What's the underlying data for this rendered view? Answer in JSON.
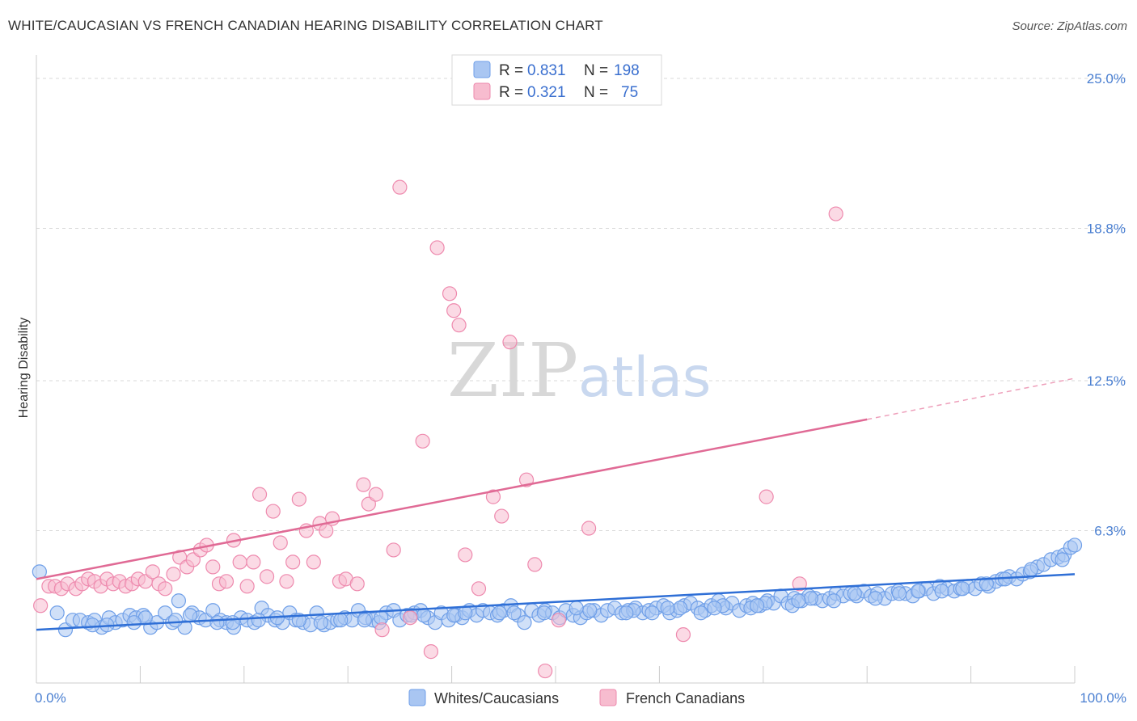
{
  "title": "WHITE/CAUCASIAN VS FRENCH CANADIAN HEARING DISABILITY CORRELATION CHART",
  "source": "Source: ZipAtlas.com",
  "watermark": {
    "zip": "ZIP",
    "atlas": "atlas"
  },
  "chart_data": {
    "type": "scatter",
    "ylabel": "Hearing Disability",
    "xlim": [
      0,
      100
    ],
    "ylim": [
      0,
      25
    ],
    "x_ticks": [
      "0.0%",
      "100.0%"
    ],
    "y_ticks": [
      {
        "value": 6.3,
        "label": "6.3%"
      },
      {
        "value": 12.5,
        "label": "12.5%"
      },
      {
        "value": 18.8,
        "label": "18.8%"
      },
      {
        "value": 25.0,
        "label": "25.0%"
      }
    ],
    "legend": {
      "placement": "top-center",
      "entries": [
        {
          "r_label": "R =",
          "r": "0.831",
          "n_label": "N =",
          "n": "198",
          "color": "#7aaaf0"
        },
        {
          "r_label": "R =",
          "r": "0.321",
          "n_label": "N =",
          "n": "75",
          "color": "#f49ab8"
        }
      ]
    },
    "series": [
      {
        "name": "Whites/Caucasians",
        "color": "#6f9fe8",
        "fill": "#a9c6f2",
        "trend": {
          "x": [
            0,
            100
          ],
          "y": [
            2.2,
            4.5
          ]
        },
        "points": [
          [
            0.3,
            4.6
          ],
          [
            2,
            2.9
          ],
          [
            2.8,
            2.2
          ],
          [
            3.5,
            2.6
          ],
          [
            4.2,
            2.6
          ],
          [
            5,
            2.5
          ],
          [
            5.6,
            2.6
          ],
          [
            6.3,
            2.3
          ],
          [
            7,
            2.7
          ],
          [
            7.6,
            2.5
          ],
          [
            8.3,
            2.6
          ],
          [
            9,
            2.8
          ],
          [
            9.6,
            2.7
          ],
          [
            10.3,
            2.8
          ],
          [
            11,
            2.3
          ],
          [
            11.6,
            2.5
          ],
          [
            12.4,
            2.9
          ],
          [
            13.1,
            2.5
          ],
          [
            13.7,
            3.4
          ],
          [
            14.3,
            2.3
          ],
          [
            15,
            2.9
          ],
          [
            15.7,
            2.7
          ],
          [
            16.3,
            2.6
          ],
          [
            17,
            3.0
          ],
          [
            17.7,
            2.6
          ],
          [
            18.3,
            2.5
          ],
          [
            19,
            2.3
          ],
          [
            19.7,
            2.7
          ],
          [
            20.3,
            2.6
          ],
          [
            21,
            2.5
          ],
          [
            21.7,
            3.1
          ],
          [
            22.3,
            2.8
          ],
          [
            23,
            2.6
          ],
          [
            23.7,
            2.5
          ],
          [
            24.4,
            2.9
          ],
          [
            25,
            2.6
          ],
          [
            25.7,
            2.5
          ],
          [
            26.4,
            2.4
          ],
          [
            27,
            2.9
          ],
          [
            27.7,
            2.4
          ],
          [
            28.3,
            2.5
          ],
          [
            29,
            2.6
          ],
          [
            29.7,
            2.7
          ],
          [
            30.4,
            2.6
          ],
          [
            31,
            3.0
          ],
          [
            31.7,
            2.7
          ],
          [
            32.4,
            2.6
          ],
          [
            33,
            2.5
          ],
          [
            33.7,
            2.9
          ],
          [
            34.4,
            3.0
          ],
          [
            35,
            2.6
          ],
          [
            35.7,
            2.8
          ],
          [
            36.4,
            2.9
          ],
          [
            37,
            3.0
          ],
          [
            37.7,
            2.7
          ],
          [
            38.4,
            2.5
          ],
          [
            39,
            2.9
          ],
          [
            39.7,
            2.6
          ],
          [
            40.4,
            2.8
          ],
          [
            41,
            2.7
          ],
          [
            41.7,
            3.0
          ],
          [
            42.4,
            2.8
          ],
          [
            43,
            3.0
          ],
          [
            43.7,
            2.9
          ],
          [
            44.4,
            2.8
          ],
          [
            45,
            3.0
          ],
          [
            45.7,
            3.2
          ],
          [
            46.4,
            2.8
          ],
          [
            47,
            2.5
          ],
          [
            47.7,
            3.0
          ],
          [
            48.4,
            2.8
          ],
          [
            49,
            3.0
          ],
          [
            49.7,
            2.9
          ],
          [
            50.4,
            2.7
          ],
          [
            51,
            3.0
          ],
          [
            51.7,
            2.8
          ],
          [
            52.4,
            2.7
          ],
          [
            53,
            2.9
          ],
          [
            53.7,
            3.0
          ],
          [
            54.4,
            2.8
          ],
          [
            55,
            3.0
          ],
          [
            55.7,
            3.1
          ],
          [
            56.4,
            2.9
          ],
          [
            57,
            3.0
          ],
          [
            57.7,
            3.1
          ],
          [
            58.4,
            2.9
          ],
          [
            59,
            3.0
          ],
          [
            59.7,
            3.1
          ],
          [
            60.4,
            3.2
          ],
          [
            61,
            2.9
          ],
          [
            61.7,
            3.0
          ],
          [
            62.4,
            3.2
          ],
          [
            63,
            3.3
          ],
          [
            63.7,
            3.1
          ],
          [
            64.4,
            3.0
          ],
          [
            65,
            3.2
          ],
          [
            65.7,
            3.4
          ],
          [
            66.4,
            3.1
          ],
          [
            67,
            3.3
          ],
          [
            67.7,
            3.0
          ],
          [
            68.4,
            3.2
          ],
          [
            69,
            3.3
          ],
          [
            69.7,
            3.2
          ],
          [
            70.4,
            3.4
          ],
          [
            71,
            3.3
          ],
          [
            71.7,
            3.6
          ],
          [
            72.4,
            3.3
          ],
          [
            73,
            3.5
          ],
          [
            73.7,
            3.4
          ],
          [
            74.4,
            3.6
          ],
          [
            75,
            3.5
          ],
          [
            75.7,
            3.4
          ],
          [
            76.4,
            3.5
          ],
          [
            77,
            3.7
          ],
          [
            77.7,
            3.6
          ],
          [
            78.4,
            3.7
          ],
          [
            79,
            3.6
          ],
          [
            79.7,
            3.8
          ],
          [
            80.4,
            3.6
          ],
          [
            81,
            3.7
          ],
          [
            81.7,
            3.5
          ],
          [
            82.4,
            3.7
          ],
          [
            83,
            3.8
          ],
          [
            83.7,
            3.7
          ],
          [
            84.4,
            3.6
          ],
          [
            85,
            3.8
          ],
          [
            85.7,
            3.9
          ],
          [
            86.4,
            3.7
          ],
          [
            87,
            4.0
          ],
          [
            87.7,
            3.9
          ],
          [
            88.4,
            3.8
          ],
          [
            89,
            3.9
          ],
          [
            89.7,
            4.0
          ],
          [
            90.4,
            3.9
          ],
          [
            91,
            4.1
          ],
          [
            91.7,
            4.0
          ],
          [
            92.4,
            4.2
          ],
          [
            93,
            4.3
          ],
          [
            93.7,
            4.4
          ],
          [
            94.4,
            4.3
          ],
          [
            95,
            4.5
          ],
          [
            95.7,
            4.6
          ],
          [
            96.4,
            4.8
          ],
          [
            97,
            4.9
          ],
          [
            97.7,
            5.1
          ],
          [
            98.4,
            5.2
          ],
          [
            99,
            5.3
          ],
          [
            99.6,
            5.6
          ],
          [
            100,
            5.7
          ],
          [
            98.8,
            5.1
          ],
          [
            6.8,
            2.4
          ],
          [
            10.5,
            2.7
          ],
          [
            14.8,
            2.8
          ],
          [
            18.9,
            2.5
          ],
          [
            23.2,
            2.7
          ],
          [
            27.4,
            2.5
          ],
          [
            31.6,
            2.6
          ],
          [
            36.1,
            2.8
          ],
          [
            40.2,
            2.8
          ],
          [
            44.6,
            2.9
          ],
          [
            48.9,
            2.9
          ],
          [
            53.3,
            3.0
          ],
          [
            57.5,
            3.0
          ],
          [
            62.0,
            3.1
          ],
          [
            66.1,
            3.2
          ],
          [
            70.2,
            3.3
          ],
          [
            74.6,
            3.5
          ],
          [
            78.8,
            3.7
          ],
          [
            83.1,
            3.7
          ],
          [
            87.2,
            3.8
          ],
          [
            91.5,
            4.1
          ],
          [
            95.8,
            4.7
          ],
          [
            52.0,
            3.1
          ],
          [
            59.3,
            2.9
          ],
          [
            64.0,
            2.9
          ],
          [
            68.8,
            3.1
          ],
          [
            72.8,
            3.2
          ],
          [
            76.8,
            3.4
          ],
          [
            80.8,
            3.5
          ],
          [
            84.9,
            3.8
          ],
          [
            89.2,
            3.9
          ],
          [
            93.3,
            4.3
          ],
          [
            46.0,
            2.9
          ],
          [
            41.3,
            2.9
          ],
          [
            37.3,
            2.8
          ],
          [
            33.2,
            2.7
          ],
          [
            29.3,
            2.6
          ],
          [
            25.3,
            2.6
          ],
          [
            21.4,
            2.6
          ],
          [
            17.4,
            2.5
          ],
          [
            13.4,
            2.6
          ],
          [
            9.4,
            2.5
          ],
          [
            5.4,
            2.4
          ],
          [
            56.8,
            2.9
          ],
          [
            60.8,
            3.1
          ],
          [
            65.3,
            3.1
          ],
          [
            69.4,
            3.2
          ],
          [
            73.4,
            3.4
          ]
        ]
      },
      {
        "name": "French Canadians",
        "color": "#ee8aae",
        "fill": "#f7bccf",
        "trend": {
          "x": [
            0,
            80
          ],
          "y": [
            4.3,
            10.9
          ]
        },
        "trend_dashed": {
          "x": [
            80,
            100
          ],
          "y": [
            10.9,
            12.6
          ]
        },
        "points": [
          [
            0.4,
            3.2
          ],
          [
            1.2,
            4.0
          ],
          [
            1.8,
            4.0
          ],
          [
            2.4,
            3.9
          ],
          [
            3,
            4.1
          ],
          [
            3.8,
            3.9
          ],
          [
            4.4,
            4.1
          ],
          [
            5,
            4.3
          ],
          [
            5.6,
            4.2
          ],
          [
            6.2,
            4.0
          ],
          [
            6.8,
            4.3
          ],
          [
            7.4,
            4.1
          ],
          [
            8,
            4.2
          ],
          [
            8.6,
            4.0
          ],
          [
            9.2,
            4.1
          ],
          [
            9.8,
            4.3
          ],
          [
            10.5,
            4.2
          ],
          [
            11.2,
            4.6
          ],
          [
            11.8,
            4.1
          ],
          [
            12.4,
            3.9
          ],
          [
            13.2,
            4.5
          ],
          [
            13.8,
            5.2
          ],
          [
            14.5,
            4.8
          ],
          [
            15.1,
            5.1
          ],
          [
            15.8,
            5.5
          ],
          [
            16.4,
            5.7
          ],
          [
            17,
            4.8
          ],
          [
            17.6,
            4.1
          ],
          [
            18.3,
            4.2
          ],
          [
            19,
            5.9
          ],
          [
            19.6,
            5.0
          ],
          [
            20.3,
            4.0
          ],
          [
            20.9,
            5.0
          ],
          [
            21.5,
            7.8
          ],
          [
            22.2,
            4.4
          ],
          [
            22.8,
            7.1
          ],
          [
            23.5,
            5.8
          ],
          [
            24.1,
            4.2
          ],
          [
            24.7,
            5.0
          ],
          [
            25.3,
            7.6
          ],
          [
            26,
            6.3
          ],
          [
            26.7,
            5.0
          ],
          [
            27.3,
            6.6
          ],
          [
            27.9,
            6.3
          ],
          [
            28.5,
            6.8
          ],
          [
            29.2,
            4.2
          ],
          [
            29.8,
            4.3
          ],
          [
            30.9,
            4.1
          ],
          [
            31.5,
            8.2
          ],
          [
            32,
            7.4
          ],
          [
            32.7,
            7.8
          ],
          [
            33.3,
            2.2
          ],
          [
            34.4,
            5.5
          ],
          [
            35,
            20.5
          ],
          [
            36,
            2.7
          ],
          [
            37.2,
            10.0
          ],
          [
            38,
            1.3
          ],
          [
            38.6,
            18.0
          ],
          [
            39.8,
            16.1
          ],
          [
            40.2,
            15.4
          ],
          [
            40.7,
            14.8
          ],
          [
            41.3,
            5.3
          ],
          [
            42.6,
            3.9
          ],
          [
            44,
            7.7
          ],
          [
            44.8,
            6.9
          ],
          [
            45.6,
            14.1
          ],
          [
            47.2,
            8.4
          ],
          [
            48.0,
            4.9
          ],
          [
            49.0,
            0.5
          ],
          [
            50.3,
            2.6
          ],
          [
            53.2,
            6.4
          ],
          [
            62.3,
            2.0
          ],
          [
            70.3,
            7.7
          ],
          [
            73.5,
            4.1
          ],
          [
            77.0,
            19.4
          ]
        ]
      }
    ]
  },
  "bottom_legend": [
    {
      "label": "Whites/Caucasians",
      "color": "#a9c6f2",
      "border": "#6f9fe8"
    },
    {
      "label": "French Canadians",
      "color": "#f7bccf",
      "border": "#ee8aae"
    }
  ]
}
